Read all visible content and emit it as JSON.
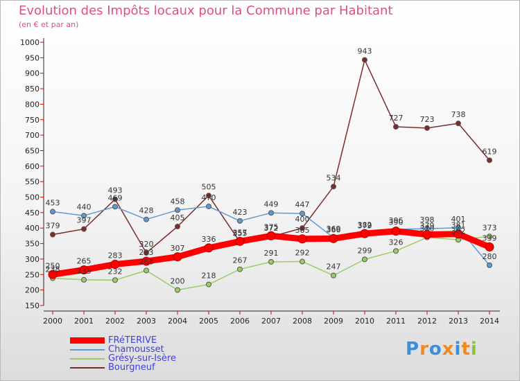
{
  "logo": {
    "text": "Proxiti",
    "colors": [
      "#3a8fd8",
      "#f08a20",
      "#3a8fd8",
      "#f08a20",
      "#3a8fd8",
      "#f08a20",
      "#8cc43c"
    ]
  },
  "chart_data": {
    "type": "line",
    "title": "Evolution des Impôts locaux pour la Commune par Habitant",
    "subtitle": "(en € et par an)",
    "xlabel": "",
    "ylabel": "",
    "x": [
      "2000",
      "2001",
      "2002",
      "2003",
      "2004",
      "2005",
      "2006",
      "2007",
      "2008",
      "2009",
      "2010",
      "2011",
      "2012",
      "2013",
      "2014"
    ],
    "ylim": [
      150,
      1000
    ],
    "yticks": [
      150,
      200,
      250,
      300,
      350,
      400,
      450,
      500,
      550,
      600,
      650,
      700,
      750,
      800,
      850,
      900,
      950,
      1000
    ],
    "grid": false,
    "legend_position": "bottom-left",
    "series": [
      {
        "name": "FRéTERIVE",
        "color": "#ff0000",
        "values": [
          250,
          265,
          283,
          293,
          307,
          336,
          357,
          375,
          365,
          366,
          382,
          390,
          379,
          381,
          339
        ],
        "labels": [
          "250",
          "265",
          "283",
          "293",
          "307",
          "336",
          "357",
          "375",
          "365",
          "366",
          "382",
          "390",
          "379",
          "381",
          "339"
        ]
      },
      {
        "name": "Chamousset",
        "color": "#5b9bd5",
        "values": [
          453,
          440,
          469,
          428,
          458,
          470,
          423,
          449,
          447,
          369,
          379,
          396,
          398,
          401,
          280
        ],
        "labels": [
          "453",
          "440",
          "469",
          "428",
          "458",
          "470",
          "423",
          "449",
          "447",
          "369",
          "379",
          "396",
          "398",
          "401",
          "280"
        ]
      },
      {
        "name": "Grésy-sur-Isère",
        "color": "#99cc66",
        "values": [
          238,
          233,
          232,
          263,
          200,
          218,
          267,
          291,
          292,
          247,
          299,
          326,
          370,
          362,
          373
        ],
        "labels": [
          "238",
          "233",
          "232",
          "263",
          "200",
          "218",
          "267",
          "291",
          "292",
          "247",
          "299",
          "326",
          "370",
          "362",
          "373"
        ]
      },
      {
        "name": "Bourgneuf",
        "color": "#7b2c2c",
        "values": [
          379,
          397,
          493,
          320,
          405,
          505,
          355,
          372,
          400,
          534,
          943,
          727,
          723,
          738,
          619
        ],
        "labels": [
          "379",
          "397",
          "493",
          "320",
          "405",
          "505",
          "355",
          "372",
          "400",
          "534",
          "943",
          "727",
          "723",
          "738",
          "619"
        ]
      }
    ]
  }
}
